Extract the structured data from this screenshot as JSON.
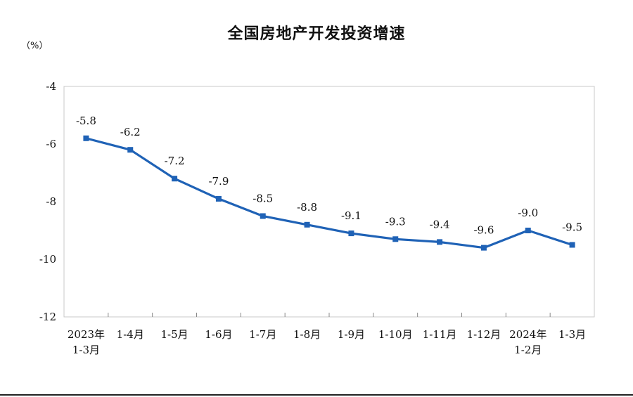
{
  "title": "全国房地产开发投资增速",
  "unit": "（%）",
  "chart_data": {
    "type": "line",
    "title": "全国房地产开发投资增速",
    "ylabel": "（%）",
    "ylim": [
      -12,
      -4
    ],
    "yticks": [
      -4,
      -6,
      -8,
      -10,
      -12
    ],
    "grid": false,
    "categories": [
      [
        "2023年",
        "1-3月"
      ],
      [
        "1-4月"
      ],
      [
        "1-5月"
      ],
      [
        "1-6月"
      ],
      [
        "1-7月"
      ],
      [
        "1-8月"
      ],
      [
        "1-9月"
      ],
      [
        "1-10月"
      ],
      [
        "1-11月"
      ],
      [
        "1-12月"
      ],
      [
        "2024年",
        "1-2月"
      ],
      [
        "1-3月"
      ]
    ],
    "series": [
      {
        "values": [
          -5.8,
          -6.2,
          -7.2,
          -7.9,
          -8.5,
          -8.8,
          -9.1,
          -9.3,
          -9.4,
          -9.6,
          -9.0,
          -9.5
        ],
        "labels": [
          "-5.8",
          "-6.2",
          "-7.2",
          "-7.9",
          "-8.5",
          "-8.8",
          "-9.1",
          "-9.3",
          "-9.4",
          "-9.6",
          "-9.0",
          "-9.5"
        ],
        "color": "#1f62b6"
      }
    ]
  }
}
